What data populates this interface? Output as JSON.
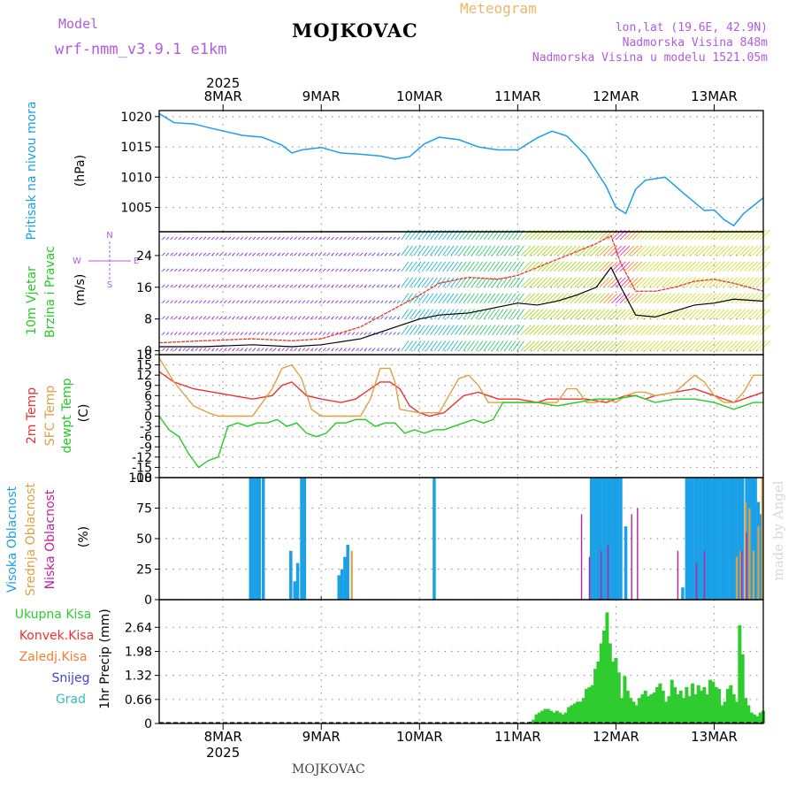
{
  "header": {
    "model_label": "Model",
    "model_name": "wrf-nmm_v3.9.1 e1km",
    "station": "MOJKOVAC",
    "title": "Meteogram",
    "coords": "lon,lat (19.6E, 42.9N)",
    "altitude": "Nadmorska Visina 848m",
    "model_altitude": "Nadmorska Visina u modelu 1521.05m",
    "footer": "MOJKOVAC",
    "watermark": "made by Angel"
  },
  "colors": {
    "pressure": "#1aa0e6",
    "temp_2m": "#ee3030",
    "temp_sfc": "#e0a040",
    "dewpoint": "#22cc22",
    "wind_label": "#22cc22",
    "cloud_high": "#1aa0e6",
    "cloud_mid": "#e0a040",
    "cloud_low": "#c020a0",
    "precip_total": "#2ecc2e",
    "precip_conv": "#ee3030",
    "precip_frz": "#f08030",
    "snow": "#4040e0",
    "hail": "#30c0c0",
    "grid": "#999999"
  },
  "chart_data": {
    "type": "line",
    "x_axis": {
      "year": "2025",
      "ticks": [
        "8MAR",
        "9MAR",
        "10MAR",
        "11MAR",
        "12MAR",
        "13MAR"
      ],
      "range_days": [
        -0.65,
        5.5
      ]
    },
    "panels": [
      {
        "type": "line",
        "id": "pressure",
        "ylabel": "Pritisak na nivou mora",
        "unit": "(hPa)",
        "ylim": [
          1001,
          1021
        ],
        "yticks": [
          "1005",
          "1010",
          "1015",
          "1020"
        ],
        "ytick_values": [
          1005,
          1010,
          1015,
          1020
        ],
        "series": [
          {
            "x": [
              -0.65,
              -0.5,
              -0.3,
              -0.1,
              0.2,
              0.4,
              0.6,
              0.7,
              0.8,
              1.0,
              1.2,
              1.4,
              1.6,
              1.75,
              1.9,
              2.05,
              2.2,
              2.4,
              2.6,
              2.8,
              3.0,
              3.2,
              3.35,
              3.5,
              3.7,
              3.9,
              4.0,
              4.1,
              4.2,
              4.3,
              4.5,
              4.7,
              4.9,
              5.0,
              5.1,
              5.2,
              5.3,
              5.5
            ],
            "y": [
              1020.5,
              1019.0,
              1018.8,
              1018.0,
              1016.9,
              1016.6,
              1015.3,
              1014.0,
              1014.5,
              1014.9,
              1014.0,
              1013.8,
              1013.5,
              1013.0,
              1013.4,
              1015.5,
              1016.6,
              1016.2,
              1015.0,
              1014.5,
              1014.5,
              1016.5,
              1017.6,
              1016.8,
              1013.5,
              1008.5,
              1005.0,
              1004.0,
              1008.0,
              1009.5,
              1010.0,
              1007.2,
              1004.5,
              1004.6,
              1003.0,
              1002.0,
              1004.0,
              1006.6
            ]
          }
        ]
      },
      {
        "type": "line",
        "id": "wind",
        "ylabel": "10m Vjetar Brzina i Pravac",
        "unit": "(m/s)",
        "ylim": [
          -1,
          30
        ],
        "yticks": [
          "0",
          "8",
          "16",
          "24"
        ],
        "ytick_values": [
          0,
          8,
          16,
          24
        ],
        "compass": [
          "N",
          "W",
          "E",
          "S"
        ],
        "series": [
          {
            "name": "wind speed",
            "x": [
              -0.65,
              -0.2,
              0.3,
              0.7,
              1.0,
              1.4,
              1.7,
              2.0,
              2.2,
              2.5,
              2.8,
              3.0,
              3.2,
              3.4,
              3.6,
              3.8,
              3.95,
              4.05,
              4.2,
              4.4,
              4.6,
              4.8,
              5.0,
              5.2,
              5.5
            ],
            "y": [
              1.0,
              1.0,
              1.5,
              1.0,
              1.5,
              3.0,
              5.5,
              8.0,
              9.0,
              9.5,
              11.0,
              12.0,
              11.5,
              12.5,
              14.0,
              16.0,
              21.0,
              16.0,
              9.0,
              8.5,
              10.0,
              11.5,
              12.0,
              13.0,
              12.5
            ]
          },
          {
            "name": "wind gust",
            "x": [
              -0.65,
              -0.2,
              0.3,
              0.7,
              1.0,
              1.4,
              1.7,
              2.0,
              2.2,
              2.5,
              2.8,
              3.0,
              3.2,
              3.4,
              3.6,
              3.8,
              3.95,
              4.05,
              4.2,
              4.4,
              4.6,
              4.8,
              5.0,
              5.2,
              5.5
            ],
            "y": [
              2.0,
              2.5,
              3.0,
              2.5,
              3.0,
              6.0,
              10.0,
              14.0,
              17.0,
              18.5,
              18.0,
              19.0,
              21.0,
              23.0,
              25.0,
              27.0,
              29.0,
              22.0,
              15.0,
              15.0,
              16.0,
              17.5,
              18.0,
              17.0,
              15.0
            ]
          }
        ]
      },
      {
        "type": "line",
        "id": "temperature",
        "ylabel": [
          "2m Temp",
          "SFC Temp",
          "dewpt Temp"
        ],
        "unit": "(C)",
        "ylim": [
          -18,
          18
        ],
        "yticks": [
          "-18",
          "-15",
          "-12",
          "-9",
          "-6",
          "-3",
          "0",
          "3",
          "6",
          "9",
          "12",
          "15",
          "18"
        ],
        "ytick_values": [
          -18,
          -15,
          -12,
          -9,
          -6,
          -3,
          0,
          3,
          6,
          9,
          12,
          15,
          18
        ],
        "series": [
          {
            "name": "2m Temp",
            "x": [
              -0.65,
              -0.5,
              -0.3,
              -0.1,
              0.1,
              0.3,
              0.5,
              0.6,
              0.7,
              0.85,
              1.0,
              1.2,
              1.35,
              1.5,
              1.6,
              1.7,
              1.8,
              1.9,
              2.0,
              2.1,
              2.25,
              2.45,
              2.6,
              2.7,
              2.8,
              3.0,
              3.2,
              3.3,
              3.5,
              3.7,
              3.9,
              4.0,
              4.1,
              4.2,
              4.3,
              4.4,
              4.6,
              4.8,
              5.0,
              5.2,
              5.4,
              5.5
            ],
            "y": [
              13,
              10,
              8,
              7,
              6,
              5,
              6,
              9,
              10,
              6,
              5,
              4,
              5,
              8,
              10,
              10,
              8,
              3,
              1,
              0,
              1,
              6,
              7,
              6,
              5,
              5,
              4,
              5,
              5,
              5,
              4,
              5,
              6,
              6,
              5,
              6,
              7,
              8,
              6,
              4,
              6,
              7
            ]
          },
          {
            "name": "SFC Temp",
            "x": [
              -0.65,
              -0.5,
              -0.3,
              -0.15,
              -0.05,
              0.1,
              0.3,
              0.5,
              0.6,
              0.7,
              0.8,
              0.9,
              1.0,
              1.2,
              1.4,
              1.5,
              1.6,
              1.7,
              1.75,
              1.8,
              2.0,
              2.2,
              2.3,
              2.4,
              2.5,
              2.6,
              2.7,
              2.8,
              3.0,
              3.2,
              3.4,
              3.5,
              3.6,
              3.7,
              3.8,
              3.9,
              4.0,
              4.1,
              4.2,
              4.3,
              4.4,
              4.6,
              4.8,
              4.9,
              5.0,
              5.1,
              5.2,
              5.3,
              5.4,
              5.5
            ],
            "y": [
              17,
              10,
              3,
              1,
              0,
              0,
              0,
              8,
              14,
              15,
              11,
              2,
              0,
              0,
              0,
              5,
              14,
              14,
              10,
              2,
              1,
              1,
              6,
              11,
              12,
              9,
              4,
              4,
              4,
              4,
              4,
              8,
              8,
              4,
              4,
              5,
              4,
              6,
              7,
              7,
              6,
              7,
              12,
              10,
              6,
              4,
              4,
              7,
              12,
              12
            ]
          },
          {
            "name": "dewpt Temp",
            "x": [
              -0.65,
              -0.55,
              -0.45,
              -0.35,
              -0.25,
              -0.15,
              -0.05,
              0.05,
              0.15,
              0.25,
              0.35,
              0.45,
              0.55,
              0.65,
              0.75,
              0.85,
              0.95,
              1.05,
              1.15,
              1.25,
              1.35,
              1.45,
              1.55,
              1.65,
              1.75,
              1.85,
              1.95,
              2.05,
              2.15,
              2.25,
              2.35,
              2.45,
              2.55,
              2.65,
              2.75,
              2.85,
              3.0,
              3.2,
              3.4,
              3.6,
              3.8,
              4.0,
              4.2,
              4.4,
              4.6,
              4.8,
              5.0,
              5.2,
              5.4,
              5.5
            ],
            "y": [
              0,
              -4,
              -6,
              -11,
              -15,
              -13,
              -12,
              -3,
              -2,
              -3,
              -2,
              -2,
              -1,
              -3,
              -2,
              -5,
              -6,
              -5,
              -2,
              -2,
              -1,
              -1,
              -3,
              -2,
              -2,
              -5,
              -4,
              -5,
              -4,
              -4,
              -3,
              -2,
              -1,
              -2,
              -1,
              4,
              4,
              4,
              3,
              4,
              5,
              5,
              6,
              4,
              5,
              5,
              4,
              2,
              4,
              4
            ]
          }
        ]
      },
      {
        "type": "bar",
        "id": "clouds",
        "ylabel": [
          "Visoka Oblacnost",
          "Srednja Oblacnost",
          "Niska Oblacnost"
        ],
        "unit": "(%)",
        "ylim": [
          0,
          100
        ],
        "yticks": [
          "0",
          "25",
          "50",
          "75",
          "100"
        ],
        "ytick_values": [
          0,
          25,
          50,
          75,
          100
        ],
        "series": [
          {
            "name": "Visoka Oblacnost",
            "x": [
              0.28,
              0.31,
              0.34,
              0.37,
              0.41,
              0.69,
              0.73,
              0.76,
              0.8,
              0.83,
              1.18,
              1.21,
              1.24,
              1.27,
              2.15,
              3.75,
              3.78,
              3.81,
              3.84,
              3.87,
              3.9,
              3.93,
              3.96,
              3.99,
              4.02,
              4.05,
              4.1,
              4.68,
              4.72,
              4.75,
              4.78,
              4.81,
              4.84,
              4.87,
              4.9,
              4.93,
              4.96,
              4.99,
              5.02,
              5.05,
              5.08,
              5.11,
              5.14,
              5.17,
              5.2,
              5.23,
              5.26,
              5.29,
              5.33,
              5.36,
              5.39,
              5.42,
              5.45,
              5.48
            ],
            "y": [
              100,
              100,
              100,
              100,
              100,
              40,
              15,
              30,
              100,
              100,
              20,
              25,
              35,
              45,
              100,
              100,
              100,
              100,
              100,
              100,
              100,
              100,
              100,
              100,
              100,
              100,
              60,
              10,
              100,
              100,
              100,
              100,
              100,
              100,
              100,
              100,
              100,
              100,
              100,
              100,
              100,
              100,
              100,
              100,
              100,
              100,
              100,
              100,
              100,
              100,
              100,
              100,
              80,
              70
            ]
          },
          {
            "name": "Srednja Oblacnost",
            "x": [
              1.31,
              5.23,
              5.27,
              5.32,
              5.36,
              5.4,
              5.45,
              5.49
            ],
            "y": [
              40,
              35,
              40,
              80,
              75,
              40,
              60,
              100
            ]
          },
          {
            "name": "Niska Oblacnost",
            "x": [
              1.0,
              3.65,
              3.73,
              3.85,
              3.92,
              4.16,
              4.22,
              4.63,
              4.82,
              4.9,
              5.28,
              5.33
            ],
            "y": [
              3,
              70,
              35,
              40,
              45,
              70,
              75,
              40,
              30,
              40,
              40,
              55
            ]
          }
        ]
      },
      {
        "type": "bar",
        "id": "precip",
        "ylabel": "1hr Precip",
        "unit": "(mm)",
        "ylim": [
          0,
          3.4
        ],
        "yticks": [
          "0",
          "0.66",
          "1.32",
          "1.98",
          "2.64"
        ],
        "ytick_values": [
          0,
          0.66,
          1.32,
          1.98,
          2.64
        ],
        "legend": [
          "Ukupna Kisa",
          "Konvek.Kisa",
          "Zaledj.Kisa",
          "Snijeg",
          "Grad"
        ],
        "series": [
          {
            "name": "Ukupna Kisa",
            "x": [
              3.13,
              3.16,
              3.19,
              3.22,
              3.25,
              3.28,
              3.31,
              3.34,
              3.37,
              3.4,
              3.43,
              3.46,
              3.49,
              3.52,
              3.55,
              3.58,
              3.61,
              3.64,
              3.67,
              3.7,
              3.73,
              3.76,
              3.79,
              3.82,
              3.85,
              3.88,
              3.91,
              3.94,
              3.97,
              4.0,
              4.03,
              4.06,
              4.09,
              4.12,
              4.15,
              4.18,
              4.21,
              4.24,
              4.27,
              4.3,
              4.33,
              4.36,
              4.39,
              4.42,
              4.45,
              4.48,
              4.51,
              4.54,
              4.57,
              4.6,
              4.63,
              4.66,
              4.69,
              4.72,
              4.75,
              4.78,
              4.81,
              4.84,
              4.87,
              4.9,
              4.93,
              4.96,
              4.99,
              5.02,
              5.05,
              5.08,
              5.11,
              5.14,
              5.17,
              5.2,
              5.23,
              5.26,
              5.29,
              5.32,
              5.35,
              5.38,
              5.41,
              5.44,
              5.47,
              5.5
            ],
            "y": [
              0.05,
              0.1,
              0.25,
              0.3,
              0.35,
              0.4,
              0.4,
              0.35,
              0.3,
              0.35,
              0.3,
              0.25,
              0.3,
              0.45,
              0.5,
              0.55,
              0.6,
              0.6,
              0.7,
              0.95,
              1.0,
              1.05,
              1.5,
              1.7,
              2.2,
              2.55,
              3.05,
              2.2,
              1.7,
              1.8,
              1.4,
              0.7,
              1.3,
              0.9,
              0.7,
              0.6,
              0.5,
              0.7,
              0.8,
              0.9,
              0.75,
              0.8,
              0.85,
              1.0,
              1.1,
              0.9,
              0.6,
              0.75,
              1.2,
              1.0,
              0.8,
              0.9,
              0.7,
              1.0,
              0.75,
              1.1,
              0.8,
              1.05,
              0.9,
              1.0,
              0.8,
              1.2,
              1.15,
              1.0,
              0.95,
              0.5,
              0.6,
              0.95,
              1.05,
              0.8,
              0.6,
              2.7,
              1.9,
              0.7,
              0.5,
              0.3,
              0.25,
              0.2,
              0.3,
              0.35
            ]
          }
        ]
      }
    ]
  }
}
